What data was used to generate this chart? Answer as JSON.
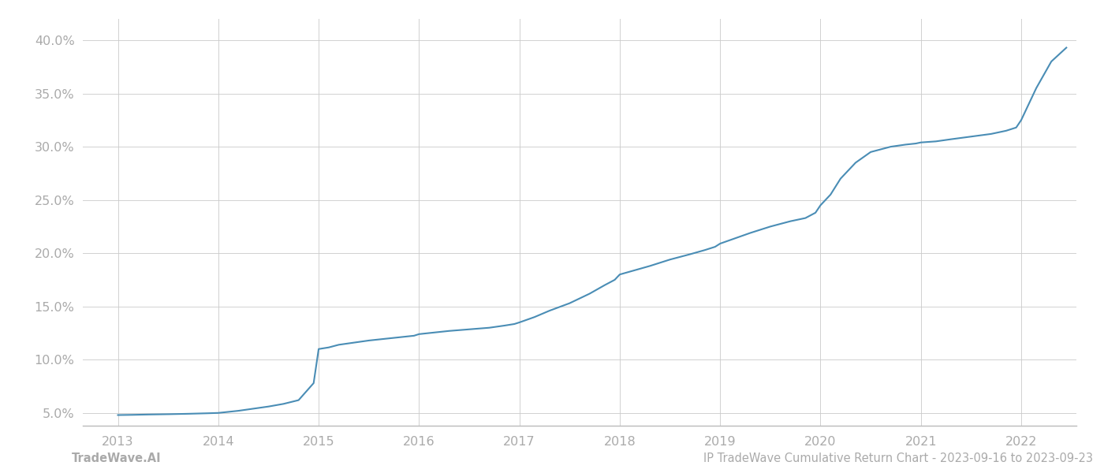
{
  "x_values": [
    2013.0,
    2013.15,
    2013.3,
    2013.5,
    2013.7,
    2013.9,
    2014.0,
    2014.1,
    2014.2,
    2014.35,
    2014.5,
    2014.65,
    2014.8,
    2014.95,
    2015.0,
    2015.1,
    2015.2,
    2015.35,
    2015.5,
    2015.65,
    2015.8,
    2015.95,
    2016.0,
    2016.15,
    2016.3,
    2016.5,
    2016.7,
    2016.85,
    2016.95,
    2017.0,
    2017.15,
    2017.3,
    2017.5,
    2017.7,
    2017.85,
    2017.95,
    2018.0,
    2018.15,
    2018.3,
    2018.5,
    2018.7,
    2018.85,
    2018.95,
    2019.0,
    2019.15,
    2019.3,
    2019.5,
    2019.7,
    2019.85,
    2019.95,
    2020.0,
    2020.1,
    2020.2,
    2020.35,
    2020.5,
    2020.7,
    2020.85,
    2020.95,
    2021.0,
    2021.15,
    2021.3,
    2021.5,
    2021.7,
    2021.85,
    2021.95,
    2022.0,
    2022.15,
    2022.3,
    2022.45
  ],
  "y_values": [
    4.8,
    4.82,
    4.85,
    4.88,
    4.92,
    4.97,
    5.0,
    5.1,
    5.2,
    5.4,
    5.6,
    5.85,
    6.2,
    7.8,
    11.0,
    11.15,
    11.4,
    11.6,
    11.8,
    11.95,
    12.1,
    12.25,
    12.4,
    12.55,
    12.7,
    12.85,
    13.0,
    13.2,
    13.35,
    13.5,
    14.0,
    14.6,
    15.3,
    16.2,
    17.0,
    17.5,
    18.0,
    18.4,
    18.8,
    19.4,
    19.9,
    20.3,
    20.6,
    20.9,
    21.4,
    21.9,
    22.5,
    23.0,
    23.3,
    23.8,
    24.5,
    25.5,
    27.0,
    28.5,
    29.5,
    30.0,
    30.2,
    30.3,
    30.4,
    30.5,
    30.7,
    30.95,
    31.2,
    31.5,
    31.8,
    32.5,
    35.5,
    38.0,
    39.3
  ],
  "line_color": "#4a8db5",
  "line_width": 1.5,
  "background_color": "#ffffff",
  "grid_color": "#cccccc",
  "ylabel_values": [
    5.0,
    10.0,
    15.0,
    20.0,
    25.0,
    30.0,
    35.0,
    40.0
  ],
  "xlabel_values": [
    2013,
    2014,
    2015,
    2016,
    2017,
    2018,
    2019,
    2020,
    2021,
    2022
  ],
  "xlim": [
    2012.65,
    2022.55
  ],
  "ylim": [
    3.8,
    42.0
  ],
  "footer_left": "TradeWave.AI",
  "footer_right": "IP TradeWave Cumulative Return Chart - 2023-09-16 to 2023-09-23",
  "tick_label_color": "#aaaaaa",
  "footer_color": "#aaaaaa",
  "footer_fontsize": 10.5,
  "tick_fontsize": 11.5
}
